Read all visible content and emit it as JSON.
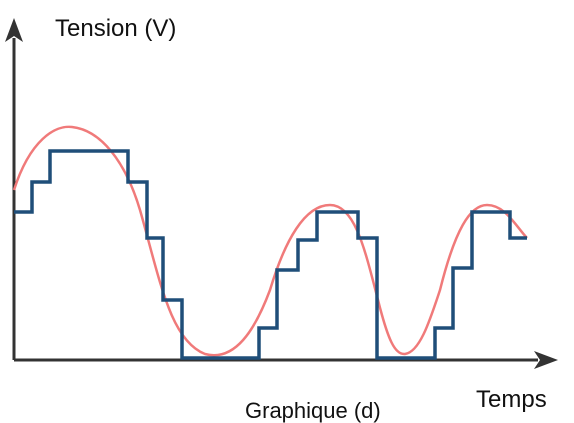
{
  "axes": {
    "y_label": "Tension (V)",
    "x_label": "Temps"
  },
  "caption": "Graphique (d)"
}
